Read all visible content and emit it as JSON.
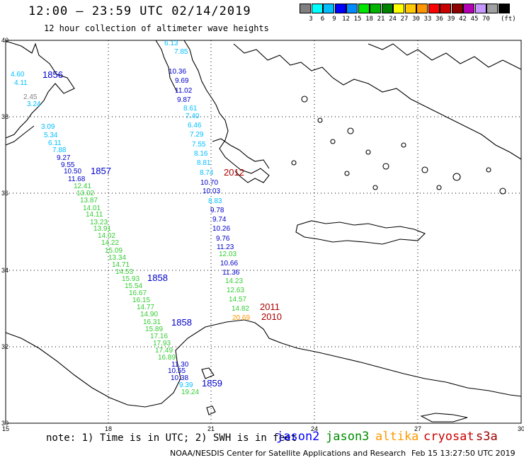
{
  "title": "12:00 – 23:59 UTC 02/14/2019",
  "subtitle": "12 hour collection of altimeter wave heights",
  "legend": {
    "unit": "(ft)",
    "colors": [
      "#808080",
      "#00ffff",
      "#00bfff",
      "#0000ff",
      "#008cff",
      "#00e600",
      "#00b400",
      "#008200",
      "#ffff00",
      "#ffc800",
      "#ff9600",
      "#ff0000",
      "#c80000",
      "#8c0000",
      "#b400b4",
      "#c896ff",
      "#a0a0a0",
      "#000000"
    ],
    "ticks": [
      "3",
      "6",
      "9",
      "12",
      "15",
      "18",
      "21",
      "24",
      "27",
      "30",
      "33",
      "36",
      "39",
      "42",
      "45",
      "70"
    ]
  },
  "lat_labels": [
    "40",
    "38",
    "36",
    "34",
    "32",
    "30"
  ],
  "lon_labels": [
    "15",
    "18",
    "21",
    "24",
    "27",
    "30"
  ],
  "note": "note: 1) Time is in UTC; 2) SWH is in feet",
  "satellites": [
    {
      "name": "jason2",
      "color": "#0000ff"
    },
    {
      "name": "jason3",
      "color": "#008c00"
    },
    {
      "name": "altika",
      "color": "#ff9900"
    },
    {
      "name": "cryosat",
      "color": "#cc0000"
    },
    {
      "name": "s3a",
      "color": "#a00000"
    }
  ],
  "footer": "NOAA/NESDIS Center for Satellite Applications and Research",
  "timestamp": "Feb 15 13:27:50 UTC 2019",
  "colors": {
    "cyan": "#00bfff",
    "blue": "#0000cc",
    "green": "#33cc33",
    "orange": "#ff9900",
    "red": "#aa0000",
    "gray": "#808080"
  },
  "time_labels": [
    {
      "text": "1856",
      "color": "#0000cc"
    },
    {
      "text": "1857",
      "color": "#0000cc"
    },
    {
      "text": "1858",
      "color": "#0000cc"
    },
    {
      "text": "1858",
      "color": "#0000cc"
    },
    {
      "text": "1859",
      "color": "#0000cc"
    },
    {
      "text": "2012",
      "color": "#aa0000"
    },
    {
      "text": "2011",
      "color": "#aa0000"
    },
    {
      "text": "2010",
      "color": "#aa0000"
    }
  ],
  "track_values": [
    {
      "text": "4.60",
      "color": "#00bfff"
    },
    {
      "text": "4.11",
      "color": "#00bfff"
    },
    {
      "text": "2.45",
      "color": "#808080"
    },
    {
      "text": "3.24",
      "color": "#00bfff"
    },
    {
      "text": "3.09",
      "color": "#00bfff"
    },
    {
      "text": "5.34",
      "color": "#00bfff"
    },
    {
      "text": "6.11",
      "color": "#00bfff"
    },
    {
      "text": "7.88",
      "color": "#00bfff"
    },
    {
      "text": "9.27",
      "color": "#0000cc"
    },
    {
      "text": "9.55",
      "color": "#0000cc"
    },
    {
      "text": "10.50",
      "color": "#0000cc"
    },
    {
      "text": "11.68",
      "color": "#0000cc"
    },
    {
      "text": "12.41",
      "color": "#33cc33"
    },
    {
      "text": "13.02",
      "color": "#33cc33"
    },
    {
      "text": "13.87",
      "color": "#33cc33"
    },
    {
      "text": "14.01",
      "color": "#33cc33"
    },
    {
      "text": "14.11",
      "color": "#33cc33"
    },
    {
      "text": "13.23",
      "color": "#33cc33"
    },
    {
      "text": "13.91",
      "color": "#33cc33"
    },
    {
      "text": "14.02",
      "color": "#33cc33"
    },
    {
      "text": "14.22",
      "color": "#33cc33"
    },
    {
      "text": "15.09",
      "color": "#33cc33"
    },
    {
      "text": "13.34",
      "color": "#33cc33"
    },
    {
      "text": "14.71",
      "color": "#33cc33"
    },
    {
      "text": "14.53",
      "color": "#33cc33"
    },
    {
      "text": "15.93",
      "color": "#33cc33"
    },
    {
      "text": "15.54",
      "color": "#33cc33"
    },
    {
      "text": "16.67",
      "color": "#33cc33"
    },
    {
      "text": "16.15",
      "color": "#33cc33"
    },
    {
      "text": "14.77",
      "color": "#33cc33"
    },
    {
      "text": "14.90",
      "color": "#33cc33"
    },
    {
      "text": "16.31",
      "color": "#33cc33"
    },
    {
      "text": "15.89",
      "color": "#33cc33"
    },
    {
      "text": "17.16",
      "color": "#33cc33"
    },
    {
      "text": "17.93",
      "color": "#33cc33"
    },
    {
      "text": "17.49",
      "color": "#33cc33"
    },
    {
      "text": "16.89",
      "color": "#33cc33"
    },
    {
      "text": "19.24",
      "color": "#33cc33"
    },
    {
      "text": "6.13",
      "color": "#00bfff"
    },
    {
      "text": "7.85",
      "color": "#00bfff"
    },
    {
      "text": "10.36",
      "color": "#0000cc"
    },
    {
      "text": "9.69",
      "color": "#0000cc"
    },
    {
      "text": "11.02",
      "color": "#0000cc"
    },
    {
      "text": "9.87",
      "color": "#0000cc"
    },
    {
      "text": "8.61",
      "color": "#00bfff"
    },
    {
      "text": "7.40",
      "color": "#00bfff"
    },
    {
      "text": "6.46",
      "color": "#00bfff"
    },
    {
      "text": "7.29",
      "color": "#00bfff"
    },
    {
      "text": "7.55",
      "color": "#00bfff"
    },
    {
      "text": "8.16",
      "color": "#00bfff"
    },
    {
      "text": "8.81",
      "color": "#00bfff"
    },
    {
      "text": "8.74",
      "color": "#00bfff"
    },
    {
      "text": "10.70",
      "color": "#0000cc"
    },
    {
      "text": "10.03",
      "color": "#0000cc"
    },
    {
      "text": "8.83",
      "color": "#00bfff"
    },
    {
      "text": "9.78",
      "color": "#0000cc"
    },
    {
      "text": "9.74",
      "color": "#0000cc"
    },
    {
      "text": "10.26",
      "color": "#0000cc"
    },
    {
      "text": "9.76",
      "color": "#0000cc"
    },
    {
      "text": "11.23",
      "color": "#0000cc"
    },
    {
      "text": "12.03",
      "color": "#33cc33"
    },
    {
      "text": "10.66",
      "color": "#0000cc"
    },
    {
      "text": "11.36",
      "color": "#0000cc"
    },
    {
      "text": "14.23",
      "color": "#33cc33"
    },
    {
      "text": "12.63",
      "color": "#33cc33"
    },
    {
      "text": "14.57",
      "color": "#33cc33"
    },
    {
      "text": "14.82",
      "color": "#33cc33"
    },
    {
      "text": "20.69",
      "color": "#ff9900"
    },
    {
      "text": "11.30",
      "color": "#0000cc"
    },
    {
      "text": "10.55",
      "color": "#0000cc"
    },
    {
      "text": "10.38",
      "color": "#0000cc"
    },
    {
      "text": "9.39",
      "color": "#00bfff"
    }
  ]
}
